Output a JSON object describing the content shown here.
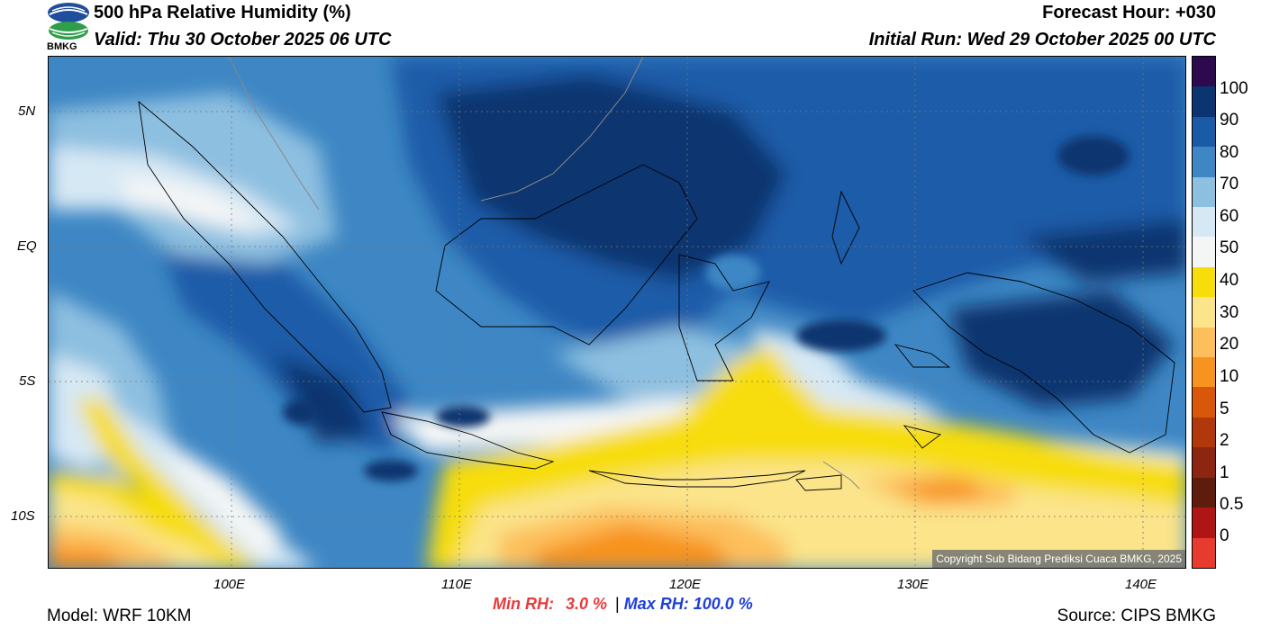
{
  "header": {
    "logo_text": "BMKG",
    "title": "500 hPa Relative Humidity (%)",
    "valid": "Valid: Thu 30 October 2025 06 UTC",
    "forecast_hour": "Forecast Hour: +030",
    "initial_run": "Initial Run: Wed 29 October 2025 00 UTC"
  },
  "map": {
    "lat_ticks": [
      "5N",
      "EQ",
      "5S",
      "10S"
    ],
    "lon_ticks": [
      "100E",
      "110E",
      "120E",
      "130E",
      "140E"
    ],
    "copyright": "Copyright Sub Bidang Prediksi Cuaca BMKG, 2025"
  },
  "colorbar": {
    "levels": [
      "100",
      "90",
      "80",
      "70",
      "60",
      "50",
      "40",
      "30",
      "20",
      "10",
      "5",
      "2",
      "1",
      "0.5",
      "0"
    ],
    "colors": [
      "#2d0a4e",
      "#0b3570",
      "#1a5ba8",
      "#3e87c4",
      "#8dbfe0",
      "#d6e8f4",
      "#f4f6f6",
      "#f7dd0a",
      "#fbe48a",
      "#fdbf5c",
      "#f7931f",
      "#d8570b",
      "#b1380a",
      "#8c2610",
      "#5e1d0c",
      "#b01515",
      "#e63b2e"
    ]
  },
  "footer": {
    "model": "Model: WRF 10KM",
    "min_label": "Min RH:",
    "min_value": "3.0 %",
    "separator": "|",
    "max_label": "Max RH: 100.0 %",
    "source": "Source: CIPS BMKG"
  }
}
